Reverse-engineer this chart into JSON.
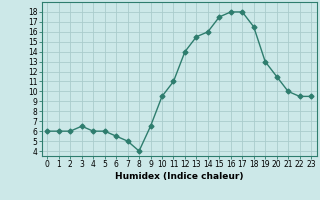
{
  "x": [
    0,
    1,
    2,
    3,
    4,
    5,
    6,
    7,
    8,
    9,
    10,
    11,
    12,
    13,
    14,
    15,
    16,
    17,
    18,
    19,
    20,
    21,
    22,
    23
  ],
  "y": [
    6,
    6,
    6,
    6.5,
    6,
    6,
    5.5,
    5,
    4,
    6.5,
    9.5,
    11,
    14,
    15.5,
    16,
    17.5,
    18,
    18,
    16.5,
    13,
    11.5,
    10,
    9.5,
    9.5
  ],
  "xlabel": "Humidex (Indice chaleur)",
  "xlim": [
    -0.5,
    23.5
  ],
  "ylim": [
    3.5,
    19
  ],
  "line_color": "#2e7d6e",
  "marker": "D",
  "marker_size": 2.5,
  "bg_color": "#cce8e8",
  "grid_color": "#aacccc",
  "yticks": [
    4,
    5,
    6,
    7,
    8,
    9,
    10,
    11,
    12,
    13,
    14,
    15,
    16,
    17,
    18
  ],
  "xticks": [
    0,
    1,
    2,
    3,
    4,
    5,
    6,
    7,
    8,
    9,
    10,
    11,
    12,
    13,
    14,
    15,
    16,
    17,
    18,
    19,
    20,
    21,
    22,
    23
  ],
  "tick_fontsize": 5.5,
  "xlabel_fontsize": 6.5
}
